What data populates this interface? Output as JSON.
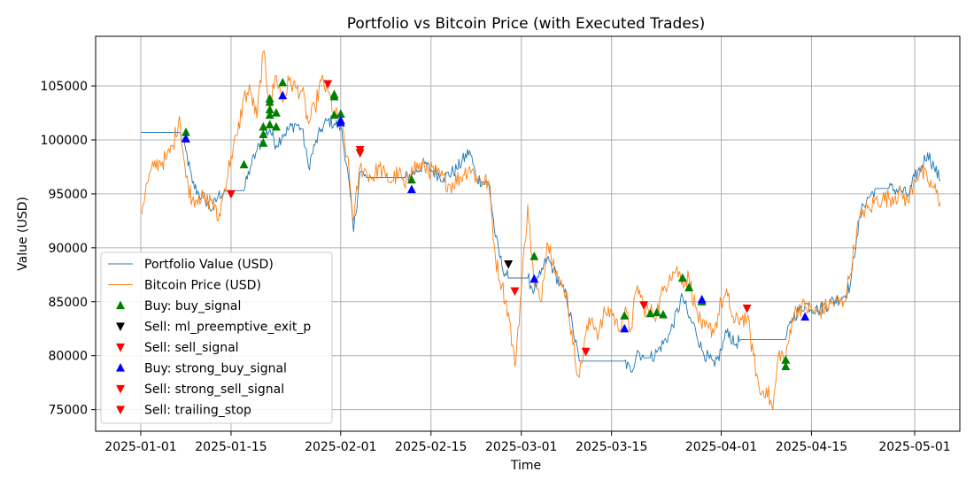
{
  "chart_data": {
    "type": "line",
    "title": "Portfolio vs Bitcoin Price (with Executed Trades)",
    "xlabel": "Time",
    "ylabel": "Value (USD)",
    "xlim": [
      "2024-12-25",
      "2025-05-08"
    ],
    "ylim": [
      73000,
      109600
    ],
    "x_ticks": [
      "2025-01-01",
      "2025-01-15",
      "2025-02-01",
      "2025-02-15",
      "2025-03-01",
      "2025-03-15",
      "2025-04-01",
      "2025-04-15",
      "2025-05-01"
    ],
    "y_ticks": [
      75000,
      80000,
      85000,
      90000,
      95000,
      100000,
      105000
    ],
    "grid": true,
    "legend_position": "lower-left",
    "series": [
      {
        "name": "Portfolio Value (USD)",
        "color": "#1f77b4",
        "type": "line",
        "points": [
          [
            "2025-01-01",
            100700
          ],
          [
            "2025-01-07",
            100700
          ],
          [
            "2025-01-08",
            99000
          ],
          [
            "2025-01-09",
            96000
          ],
          [
            "2025-01-10",
            95000
          ],
          [
            "2025-01-11",
            94500
          ],
          [
            "2025-01-12",
            93500
          ],
          [
            "2025-01-13",
            94800
          ],
          [
            "2025-01-14",
            95300
          ],
          [
            "2025-01-17",
            95300
          ],
          [
            "2025-01-18",
            97500
          ],
          [
            "2025-01-19",
            99000
          ],
          [
            "2025-01-20",
            100200
          ],
          [
            "2025-01-21",
            101000
          ],
          [
            "2025-01-22",
            99500
          ],
          [
            "2025-01-23",
            100500
          ],
          [
            "2025-01-25",
            101500
          ],
          [
            "2025-01-26",
            101000
          ],
          [
            "2025-01-27",
            97500
          ],
          [
            "2025-01-28",
            99500
          ],
          [
            "2025-01-29",
            101000
          ],
          [
            "2025-01-30",
            101800
          ],
          [
            "2025-01-31",
            101500
          ],
          [
            "2025-02-01",
            101200
          ],
          [
            "2025-02-02",
            97500
          ],
          [
            "2025-02-03",
            91500
          ],
          [
            "2025-02-04",
            97000
          ],
          [
            "2025-02-05",
            96500
          ],
          [
            "2025-02-11",
            96500
          ],
          [
            "2025-02-12",
            96800
          ],
          [
            "2025-02-14",
            97800
          ],
          [
            "2025-02-15",
            97200
          ],
          [
            "2025-02-17",
            96500
          ],
          [
            "2025-02-19",
            97300
          ],
          [
            "2025-02-21",
            99000
          ],
          [
            "2025-02-22",
            96500
          ],
          [
            "2025-02-24",
            95800
          ],
          [
            "2025-02-25",
            91000
          ],
          [
            "2025-02-26",
            88300
          ],
          [
            "2025-02-27",
            87200
          ],
          [
            "2025-03-02",
            87200
          ],
          [
            "2025-03-03",
            86000
          ],
          [
            "2025-03-04",
            87500
          ],
          [
            "2025-03-05",
            89000
          ],
          [
            "2025-03-06",
            88000
          ],
          [
            "2025-03-07",
            86500
          ],
          [
            "2025-03-08",
            85500
          ],
          [
            "2025-03-09",
            82500
          ],
          [
            "2025-03-10",
            79500
          ],
          [
            "2025-03-17",
            79500
          ],
          [
            "2025-03-18",
            78500
          ],
          [
            "2025-03-19",
            80500
          ],
          [
            "2025-03-20",
            79800
          ],
          [
            "2025-03-21",
            79800
          ],
          [
            "2025-03-22",
            80300
          ],
          [
            "2025-03-24",
            82000
          ],
          [
            "2025-03-26",
            85500
          ],
          [
            "2025-03-27",
            83500
          ],
          [
            "2025-03-28",
            82500
          ],
          [
            "2025-03-29",
            80500
          ],
          [
            "2025-03-31",
            79000
          ],
          [
            "2025-04-01",
            80500
          ],
          [
            "2025-04-02",
            82500
          ],
          [
            "2025-04-03",
            81000
          ],
          [
            "2025-04-04",
            81500
          ],
          [
            "2025-04-05",
            81500
          ],
          [
            "2025-04-11",
            81500
          ],
          [
            "2025-04-12",
            83500
          ],
          [
            "2025-04-14",
            84800
          ],
          [
            "2025-04-16",
            84200
          ],
          [
            "2025-04-18",
            85000
          ],
          [
            "2025-04-20",
            85500
          ],
          [
            "2025-04-21",
            86500
          ],
          [
            "2025-04-22",
            91000
          ],
          [
            "2025-04-23",
            94000
          ],
          [
            "2025-04-25",
            95500
          ],
          [
            "2025-04-27",
            95500
          ],
          [
            "2025-04-29",
            95300
          ],
          [
            "2025-04-30",
            94800
          ],
          [
            "2025-05-01",
            96500
          ],
          [
            "2025-05-02",
            97500
          ],
          [
            "2025-05-03",
            98800
          ],
          [
            "2025-05-04",
            97500
          ],
          [
            "2025-05-05",
            96200
          ]
        ]
      },
      {
        "name": "Bitcoin Price (USD)",
        "color": "#ff7f0e",
        "type": "line",
        "points": [
          [
            "2025-01-01",
            93200
          ],
          [
            "2025-01-02",
            96000
          ],
          [
            "2025-01-03",
            97500
          ],
          [
            "2025-01-04",
            98000
          ],
          [
            "2025-01-05",
            98200
          ],
          [
            "2025-01-06",
            99500
          ],
          [
            "2025-01-07",
            102200
          ],
          [
            "2025-01-08",
            96500
          ],
          [
            "2025-01-09",
            94500
          ],
          [
            "2025-01-10",
            94800
          ],
          [
            "2025-01-11",
            94200
          ],
          [
            "2025-01-12",
            94500
          ],
          [
            "2025-01-13",
            92500
          ],
          [
            "2025-01-14",
            95500
          ],
          [
            "2025-01-15",
            98500
          ],
          [
            "2025-01-16",
            100500
          ],
          [
            "2025-01-17",
            104000
          ],
          [
            "2025-01-18",
            104500
          ],
          [
            "2025-01-19",
            102000
          ],
          [
            "2025-01-20",
            108200
          ],
          [
            "2025-01-21",
            103000
          ],
          [
            "2025-01-22",
            106000
          ],
          [
            "2025-01-23",
            103500
          ],
          [
            "2025-01-24",
            105500
          ],
          [
            "2025-01-25",
            104800
          ],
          [
            "2025-01-26",
            104500
          ],
          [
            "2025-01-27",
            101500
          ],
          [
            "2025-01-28",
            103000
          ],
          [
            "2025-01-29",
            105500
          ],
          [
            "2025-01-30",
            104500
          ],
          [
            "2025-01-31",
            102500
          ],
          [
            "2025-02-01",
            101500
          ],
          [
            "2025-02-02",
            98500
          ],
          [
            "2025-02-03",
            92500
          ],
          [
            "2025-02-04",
            97500
          ],
          [
            "2025-02-05",
            97000
          ],
          [
            "2025-02-06",
            96500
          ],
          [
            "2025-02-07",
            97500
          ],
          [
            "2025-02-08",
            96500
          ],
          [
            "2025-02-09",
            96200
          ],
          [
            "2025-02-10",
            97000
          ],
          [
            "2025-02-11",
            95500
          ],
          [
            "2025-02-12",
            97500
          ],
          [
            "2025-02-14",
            97500
          ],
          [
            "2025-02-16",
            96800
          ],
          [
            "2025-02-18",
            95800
          ],
          [
            "2025-02-20",
            96800
          ],
          [
            "2025-02-21",
            97500
          ],
          [
            "2025-02-22",
            96500
          ],
          [
            "2025-02-24",
            96000
          ],
          [
            "2025-02-25",
            89000
          ],
          [
            "2025-02-26",
            86500
          ],
          [
            "2025-02-27",
            84000
          ],
          [
            "2025-02-28",
            79000
          ],
          [
            "2025-03-01",
            86000
          ],
          [
            "2025-03-02",
            94000
          ],
          [
            "2025-03-03",
            86500
          ],
          [
            "2025-03-04",
            85000
          ],
          [
            "2025-03-05",
            90500
          ],
          [
            "2025-03-06",
            89000
          ],
          [
            "2025-03-07",
            86500
          ],
          [
            "2025-03-08",
            86000
          ],
          [
            "2025-03-09",
            81000
          ],
          [
            "2025-03-10",
            78000
          ],
          [
            "2025-03-11",
            82000
          ],
          [
            "2025-03-12",
            83500
          ],
          [
            "2025-03-13",
            82000
          ],
          [
            "2025-03-14",
            84000
          ],
          [
            "2025-03-15",
            84200
          ],
          [
            "2025-03-16",
            82500
          ],
          [
            "2025-03-17",
            84000
          ],
          [
            "2025-03-18",
            82500
          ],
          [
            "2025-03-19",
            86500
          ],
          [
            "2025-03-20",
            84500
          ],
          [
            "2025-03-21",
            84000
          ],
          [
            "2025-03-22",
            84000
          ],
          [
            "2025-03-23",
            86000
          ],
          [
            "2025-03-24",
            87500
          ],
          [
            "2025-03-25",
            88000
          ],
          [
            "2025-03-26",
            87000
          ],
          [
            "2025-03-27",
            87200
          ],
          [
            "2025-03-28",
            84500
          ],
          [
            "2025-03-29",
            82500
          ],
          [
            "2025-03-30",
            82500
          ],
          [
            "2025-03-31",
            82500
          ],
          [
            "2025-04-01",
            85000
          ],
          [
            "2025-04-02",
            85500
          ],
          [
            "2025-04-03",
            83000
          ],
          [
            "2025-04-04",
            83500
          ],
          [
            "2025-04-05",
            83500
          ],
          [
            "2025-04-06",
            80000
          ],
          [
            "2025-04-07",
            76500
          ],
          [
            "2025-04-08",
            77000
          ],
          [
            "2025-04-09",
            75000
          ],
          [
            "2025-04-10",
            80500
          ],
          [
            "2025-04-11",
            79500
          ],
          [
            "2025-04-12",
            83500
          ],
          [
            "2025-04-13",
            84500
          ],
          [
            "2025-04-14",
            84500
          ],
          [
            "2025-04-16",
            84000
          ],
          [
            "2025-04-18",
            84800
          ],
          [
            "2025-04-20",
            85000
          ],
          [
            "2025-04-21",
            87500
          ],
          [
            "2025-04-22",
            91500
          ],
          [
            "2025-04-23",
            93500
          ],
          [
            "2025-04-24",
            93500
          ],
          [
            "2025-04-25",
            94500
          ],
          [
            "2025-04-26",
            94500
          ],
          [
            "2025-04-28",
            94800
          ],
          [
            "2025-04-29",
            95000
          ],
          [
            "2025-04-30",
            94200
          ],
          [
            "2025-05-01",
            96500
          ],
          [
            "2025-05-02",
            97000
          ],
          [
            "2025-05-03",
            96200
          ],
          [
            "2025-05-04",
            95500
          ],
          [
            "2025-05-05",
            94200
          ]
        ]
      },
      {
        "name": "Buy: buy_signal",
        "color": "#008000",
        "type": "scatter",
        "marker": "triangle-up",
        "points": [
          [
            "2025-01-08",
            100700
          ],
          [
            "2025-01-17",
            97700
          ],
          [
            "2025-01-20",
            99700
          ],
          [
            "2025-01-20",
            100500
          ],
          [
            "2025-01-20",
            101200
          ],
          [
            "2025-01-21",
            101400
          ],
          [
            "2025-01-21",
            102300
          ],
          [
            "2025-01-21",
            102800
          ],
          [
            "2025-01-21",
            103500
          ],
          [
            "2025-01-21",
            103800
          ],
          [
            "2025-01-22",
            102500
          ],
          [
            "2025-01-22",
            101200
          ],
          [
            "2025-01-23",
            105300
          ],
          [
            "2025-01-31",
            104200
          ],
          [
            "2025-01-31",
            104000
          ],
          [
            "2025-01-31",
            102300
          ],
          [
            "2025-02-01",
            102400
          ],
          [
            "2025-02-12",
            96300
          ],
          [
            "2025-03-03",
            89200
          ],
          [
            "2025-03-17",
            83700
          ],
          [
            "2025-03-21",
            83900
          ],
          [
            "2025-03-22",
            84000
          ],
          [
            "2025-03-23",
            83800
          ],
          [
            "2025-03-26",
            87200
          ],
          [
            "2025-03-27",
            86300
          ],
          [
            "2025-03-29",
            85000
          ],
          [
            "2025-04-11",
            79600
          ],
          [
            "2025-04-11",
            79000
          ]
        ]
      },
      {
        "name": "Sell: ml_preemptive_exit_p",
        "color": "#000000",
        "type": "scatter",
        "marker": "triangle-down",
        "points": [
          [
            "2025-02-27",
            88500
          ]
        ]
      },
      {
        "name": "Sell: sell_signal",
        "color": "#ff0000",
        "type": "scatter",
        "marker": "triangle-down",
        "points": [
          [
            "2025-01-15",
            95000
          ],
          [
            "2025-01-30",
            105200
          ],
          [
            "2025-02-04",
            98800
          ],
          [
            "2025-02-04",
            99100
          ],
          [
            "2025-02-28",
            86000
          ],
          [
            "2025-03-11",
            80400
          ],
          [
            "2025-03-20",
            84700
          ],
          [
            "2025-04-05",
            84400
          ]
        ]
      },
      {
        "name": "Buy: strong_buy_signal",
        "color": "#0000ff",
        "type": "scatter",
        "marker": "triangle-up",
        "points": [
          [
            "2025-01-08",
            100100
          ],
          [
            "2025-01-23",
            104100
          ],
          [
            "2025-02-01",
            101600
          ],
          [
            "2025-02-01",
            101800
          ],
          [
            "2025-02-12",
            95400
          ],
          [
            "2025-03-03",
            87100
          ],
          [
            "2025-03-17",
            82500
          ],
          [
            "2025-03-29",
            85200
          ],
          [
            "2025-04-14",
            83600
          ]
        ]
      },
      {
        "name": "Sell: strong_sell_signal",
        "color": "#ff0000",
        "type": "scatter",
        "marker": "triangle-down",
        "points": []
      },
      {
        "name": "Sell: trailing_stop",
        "color": "#ff0000",
        "type": "scatter",
        "marker": "triangle-down",
        "points": []
      }
    ]
  }
}
